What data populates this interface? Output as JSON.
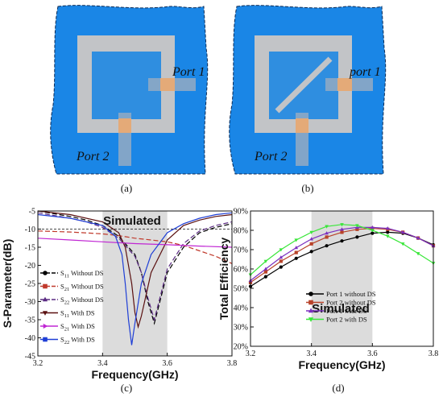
{
  "panels": {
    "a": {
      "label": "(a)",
      "port1": "Port 1",
      "port2": "Port 2"
    },
    "b": {
      "label": "(b)",
      "port1": "port 1",
      "port2": "Port 2"
    }
  },
  "colors": {
    "substrate": "#1a86e6",
    "patch": "#2f8ee0",
    "ring": "#c2c4c7",
    "feed_orange": "#e4aa78",
    "feed_gray": "#8ea9c4",
    "band": "#dcdcdc"
  },
  "chart_data": [
    {
      "panel_label": "(c)",
      "type": "line",
      "annotation": "Simulated",
      "xlabel": "Frequency(GHz)",
      "ylabel": "S-Parameter(dB)",
      "xlim": [
        3.2,
        3.8
      ],
      "ylim": [
        -45,
        -5
      ],
      "xticks": [
        "3.2",
        "3.4",
        "3.6",
        "3.8"
      ],
      "yticks": [
        "-5",
        "-10",
        "-15",
        "-20",
        "-25",
        "-30",
        "-35",
        "-40",
        "-45"
      ],
      "shaded_band": [
        3.4,
        3.6
      ],
      "reference_line": -10,
      "legend_position": "bottom-left",
      "series": [
        {
          "name": "S11 Without DS",
          "legend_main": "S",
          "legend_sub": "11",
          "legend_rest": " Without DS",
          "color": "#000000",
          "dash": "6,3",
          "marker": "circle",
          "x": [
            3.2,
            3.3,
            3.35,
            3.4,
            3.45,
            3.5,
            3.52,
            3.54,
            3.56,
            3.6,
            3.65,
            3.7,
            3.75,
            3.8
          ],
          "y": [
            -5,
            -6.5,
            -7.5,
            -9,
            -12,
            -17,
            -22,
            -30,
            -36,
            -22,
            -15,
            -11,
            -9.5,
            -8.5
          ]
        },
        {
          "name": "S21 Without DS",
          "legend_main": "S",
          "legend_sub": "21",
          "legend_rest": " Without DS",
          "color": "#c0392b",
          "dash": "6,3",
          "marker": "square",
          "x": [
            3.2,
            3.3,
            3.4,
            3.45,
            3.5,
            3.55,
            3.6,
            3.65,
            3.7,
            3.75,
            3.8
          ],
          "y": [
            -10.5,
            -10.8,
            -11.3,
            -11.8,
            -12.5,
            -13,
            -13.5,
            -14.5,
            -16,
            -17.5,
            -19.5
          ]
        },
        {
          "name": "S22 Without DS",
          "legend_main": "S",
          "legend_sub": "22",
          "legend_rest": " Without DS",
          "color": "#5a2a82",
          "dash": "6,3",
          "marker": "triangle",
          "x": [
            3.2,
            3.3,
            3.35,
            3.4,
            3.45,
            3.5,
            3.52,
            3.54,
            3.56,
            3.6,
            3.65,
            3.7,
            3.75,
            3.8
          ],
          "y": [
            -5.5,
            -7,
            -8,
            -9.5,
            -12.5,
            -17.5,
            -22,
            -29,
            -35,
            -21,
            -14,
            -10.5,
            -9,
            -8
          ]
        },
        {
          "name": "S11 With DS",
          "legend_main": "S",
          "legend_sub": "11",
          "legend_rest": " With DS",
          "color": "#5a1010",
          "dash": "",
          "marker": "triangle-down",
          "x": [
            3.2,
            3.3,
            3.4,
            3.45,
            3.47,
            3.49,
            3.5,
            3.51,
            3.52,
            3.55,
            3.6,
            3.65,
            3.7,
            3.75,
            3.8
          ],
          "y": [
            -5,
            -6,
            -8,
            -11,
            -15,
            -25,
            -33,
            -37,
            -34,
            -22,
            -13,
            -9,
            -7.5,
            -6.5,
            -6
          ]
        },
        {
          "name": "S21 With DS",
          "legend_main": "S",
          "legend_sub": "21",
          "legend_rest": " With DS",
          "color": "#c026d3",
          "dash": "",
          "marker": "triangle-right",
          "x": [
            3.2,
            3.3,
            3.4,
            3.5,
            3.6,
            3.7,
            3.8
          ],
          "y": [
            -12.5,
            -13,
            -13.5,
            -14,
            -14.3,
            -14.7,
            -15
          ]
        },
        {
          "name": "S22 With DS",
          "legend_main": "S",
          "legend_sub": "22",
          "legend_rest": " With DS",
          "color": "#1f3fd6",
          "dash": "",
          "marker": "square",
          "x": [
            3.2,
            3.3,
            3.4,
            3.44,
            3.46,
            3.47,
            3.48,
            3.49,
            3.5,
            3.52,
            3.55,
            3.6,
            3.65,
            3.7,
            3.75,
            3.8
          ],
          "y": [
            -6,
            -7,
            -9,
            -12,
            -17,
            -25,
            -35,
            -42,
            -36,
            -25,
            -17,
            -11,
            -8.5,
            -7,
            -6,
            -5.5
          ]
        }
      ]
    },
    {
      "panel_label": "(d)",
      "type": "line",
      "annotation": "Simulated",
      "xlabel": "Frequency(GHz)",
      "ylabel": "Total Efficiency",
      "xlim": [
        3.2,
        3.8
      ],
      "ylim": [
        20,
        90
      ],
      "xticks": [
        "3.2",
        "3.4",
        "3.6",
        "3.8"
      ],
      "yticks": [
        "20%",
        "30%",
        "40%",
        "50%",
        "60%",
        "70%",
        "80%",
        "90%"
      ],
      "shaded_band": [
        3.4,
        3.6
      ],
      "legend_position": "bottom-center",
      "series": [
        {
          "name": "Port 1 without DS",
          "color": "#000000",
          "marker": "circle",
          "x": [
            3.2,
            3.25,
            3.3,
            3.35,
            3.4,
            3.45,
            3.5,
            3.55,
            3.6,
            3.65,
            3.7,
            3.75,
            3.8
          ],
          "y": [
            51,
            56,
            61,
            65.5,
            69,
            72,
            74.5,
            76.5,
            78.5,
            79,
            78.5,
            76,
            72.5
          ]
        },
        {
          "name": "Port 2 without DS",
          "color": "#b8432a",
          "marker": "square",
          "x": [
            3.2,
            3.25,
            3.3,
            3.35,
            3.4,
            3.45,
            3.5,
            3.55,
            3.6,
            3.65,
            3.7,
            3.75,
            3.8
          ],
          "y": [
            53,
            58.5,
            64,
            68.5,
            73,
            76.5,
            79,
            80.5,
            81,
            80.5,
            79,
            76,
            72
          ]
        },
        {
          "name": "Port 1 with DS",
          "color": "#7b2fbf",
          "marker": "triangle",
          "x": [
            3.2,
            3.25,
            3.3,
            3.35,
            3.4,
            3.45,
            3.5,
            3.55,
            3.6,
            3.65,
            3.7,
            3.75,
            3.8
          ],
          "y": [
            54,
            60,
            66,
            71,
            75.5,
            78.5,
            80.5,
            81.5,
            81.5,
            81,
            79,
            76,
            72
          ]
        },
        {
          "name": "Port 2 with DS",
          "color": "#39e639",
          "marker": "triangle-down",
          "x": [
            3.2,
            3.25,
            3.3,
            3.35,
            3.4,
            3.45,
            3.5,
            3.55,
            3.6,
            3.65,
            3.7,
            3.75,
            3.8
          ],
          "y": [
            57,
            64,
            70,
            75,
            79,
            82,
            83,
            82.5,
            80,
            77,
            73,
            68,
            63
          ]
        }
      ]
    }
  ]
}
